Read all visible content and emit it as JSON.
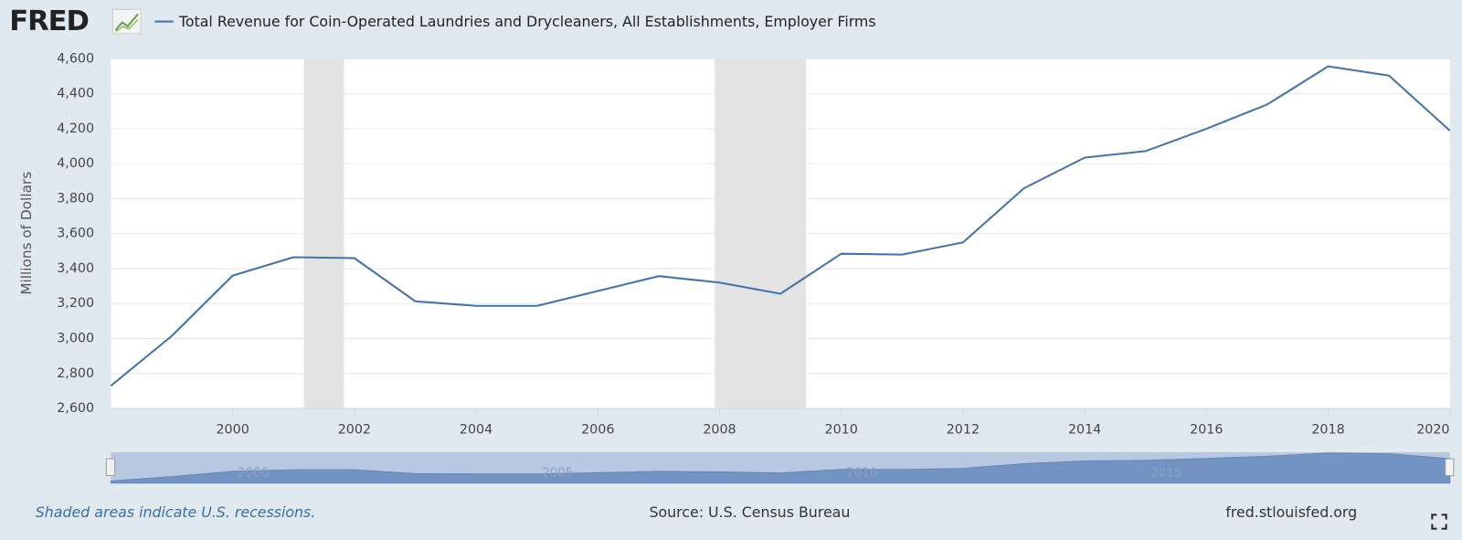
{
  "chart_data": {
    "type": "line",
    "logo": "FRED",
    "note": "Shaded areas indicate U.S. recessions.",
    "source": "Source: U.S. Census Bureau",
    "url": "fred.stlouisfed.org",
    "y_label": "Millions of Dollars",
    "x": [
      1998,
      1999,
      2000,
      2001,
      2002,
      2003,
      2004,
      2005,
      2006,
      2007,
      2008,
      2009,
      2010,
      2011,
      2012,
      2013,
      2014,
      2015,
      2016,
      2017,
      2018,
      2019,
      2020
    ],
    "series": [
      {
        "name": "Total Revenue for Coin-Operated Laundries and Drycleaners, All Establishments, Employer Firms",
        "color": "#4572a7",
        "values": [
          2730,
          3015,
          3360,
          3465,
          3460,
          3213,
          3187,
          3187,
          3272,
          3357,
          3320,
          3256,
          3485,
          3480,
          3550,
          3859,
          4035,
          4072,
          4200,
          4339,
          4557,
          4504,
          4189
        ]
      }
    ],
    "recessions": [
      [
        2001.17,
        2001.83
      ],
      [
        2007.92,
        2009.42
      ]
    ],
    "xlim": [
      1998,
      2020
    ],
    "xticks": [
      2000,
      2002,
      2004,
      2006,
      2008,
      2010,
      2012,
      2014,
      2016,
      2018,
      2020
    ],
    "ylim": [
      2600,
      4600
    ],
    "yticks": [
      {
        "value": 2600,
        "label": "2,600"
      },
      {
        "value": 2800,
        "label": "2,800"
      },
      {
        "value": 3000,
        "label": "3,000"
      },
      {
        "value": 3200,
        "label": "3,200"
      },
      {
        "value": 3400,
        "label": "3,400"
      },
      {
        "value": 3600,
        "label": "3,600"
      },
      {
        "value": 3800,
        "label": "3,800"
      },
      {
        "value": 4000,
        "label": "4,000"
      },
      {
        "value": 4200,
        "label": "4,200"
      },
      {
        "value": 4400,
        "label": "4,400"
      },
      {
        "value": 4600,
        "label": "4,600"
      }
    ],
    "navigator_ticks": [
      2000,
      2005,
      2010,
      2015
    ],
    "grid": true
  }
}
